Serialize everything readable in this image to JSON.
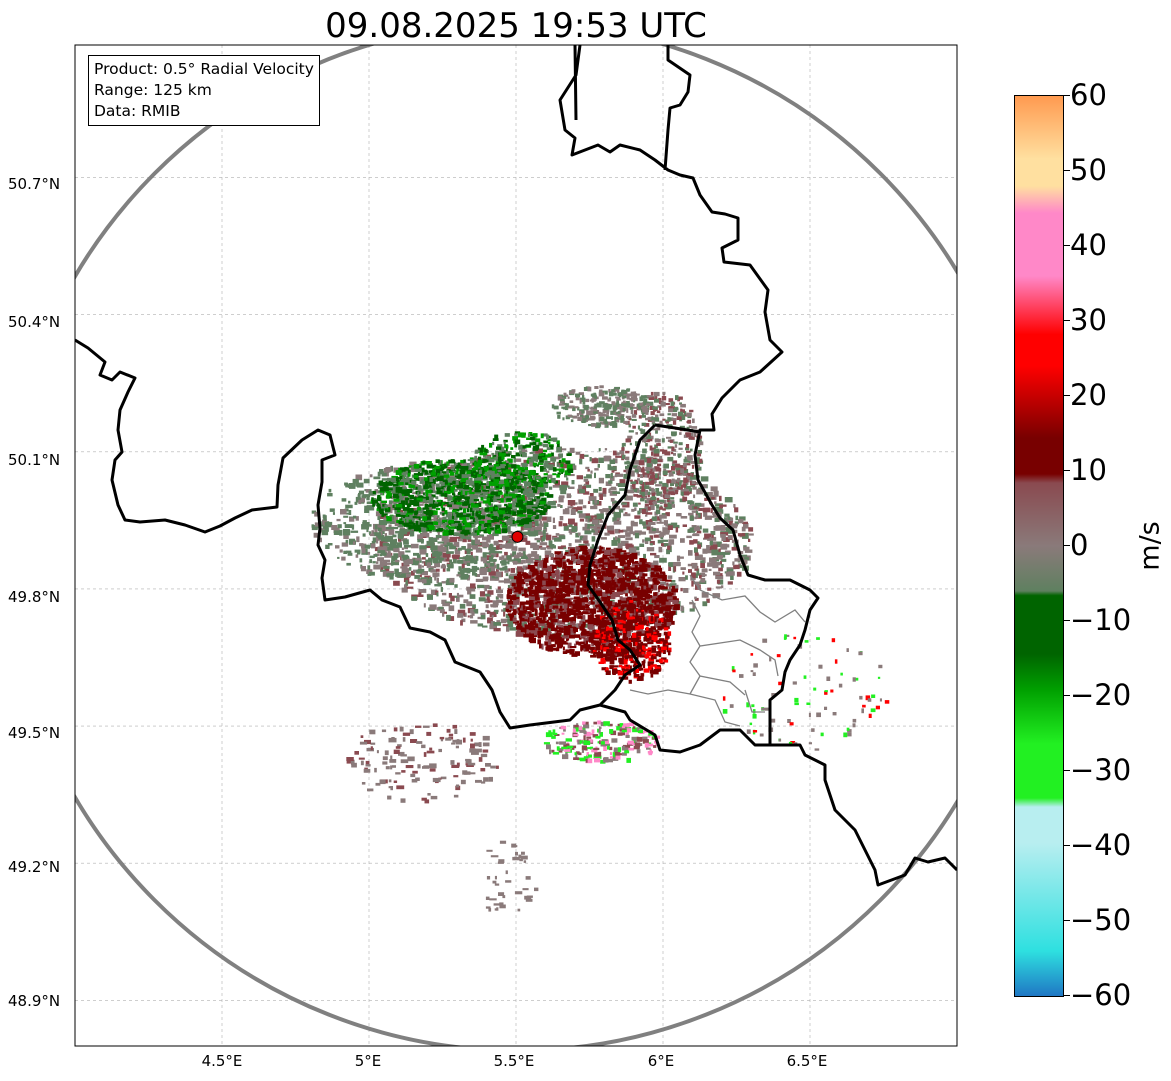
{
  "title": "09.08.2025 19:53 UTC",
  "info": {
    "product": "Product: 0.5° Radial Velocity",
    "range": "Range: 125 km",
    "source": "Data: RMIB"
  },
  "axes": {
    "lat_labels": [
      "50.7°N",
      "50.4°N",
      "50.1°N",
      "49.8°N",
      "49.5°N",
      "49.2°N",
      "48.9°N"
    ],
    "lon_labels": [
      "4.5°E",
      "5°E",
      "5.5°E",
      "6°E",
      "6.5°E"
    ],
    "lat_values": [
      50.7,
      50.4,
      50.1,
      49.8,
      49.5,
      49.2,
      48.9
    ],
    "lon_values": [
      4.5,
      5.0,
      5.5,
      6.0,
      6.5
    ],
    "lon_range": [
      4.0,
      7.0
    ],
    "lat_range": [
      48.8,
      50.99
    ]
  },
  "radar": {
    "site_lon": 5.505,
    "site_lat": 49.914,
    "range_km": 125
  },
  "colorbar": {
    "unit": "m/s",
    "min": -60,
    "max": 60,
    "tick_labels": [
      "60",
      "50",
      "40",
      "30",
      "20",
      "10",
      "0",
      "−10",
      "−20",
      "−30",
      "−40",
      "−50",
      "−60"
    ],
    "colors": {
      "strong_in": "#1f77c4",
      "cyan": "#2ee0e0",
      "light_cyan": "#b8eef0",
      "bright_green": "#22f022",
      "green": "#00a000",
      "dark_green": "#006400",
      "neutral_green": "#5f8060",
      "neutral_grey": "#8a7a7a",
      "muted_red": "#8a4a50",
      "dark_red": "#780000",
      "red": "#ff0000",
      "pink": "#ff88c8",
      "peach": "#ffe0a0",
      "orange": "#ff9a50"
    }
  },
  "colors": {
    "border": "#000000",
    "range_ring": "#808080",
    "grid": "#b0b0b0",
    "admin": "#808080",
    "site_marker": "#e00000"
  }
}
